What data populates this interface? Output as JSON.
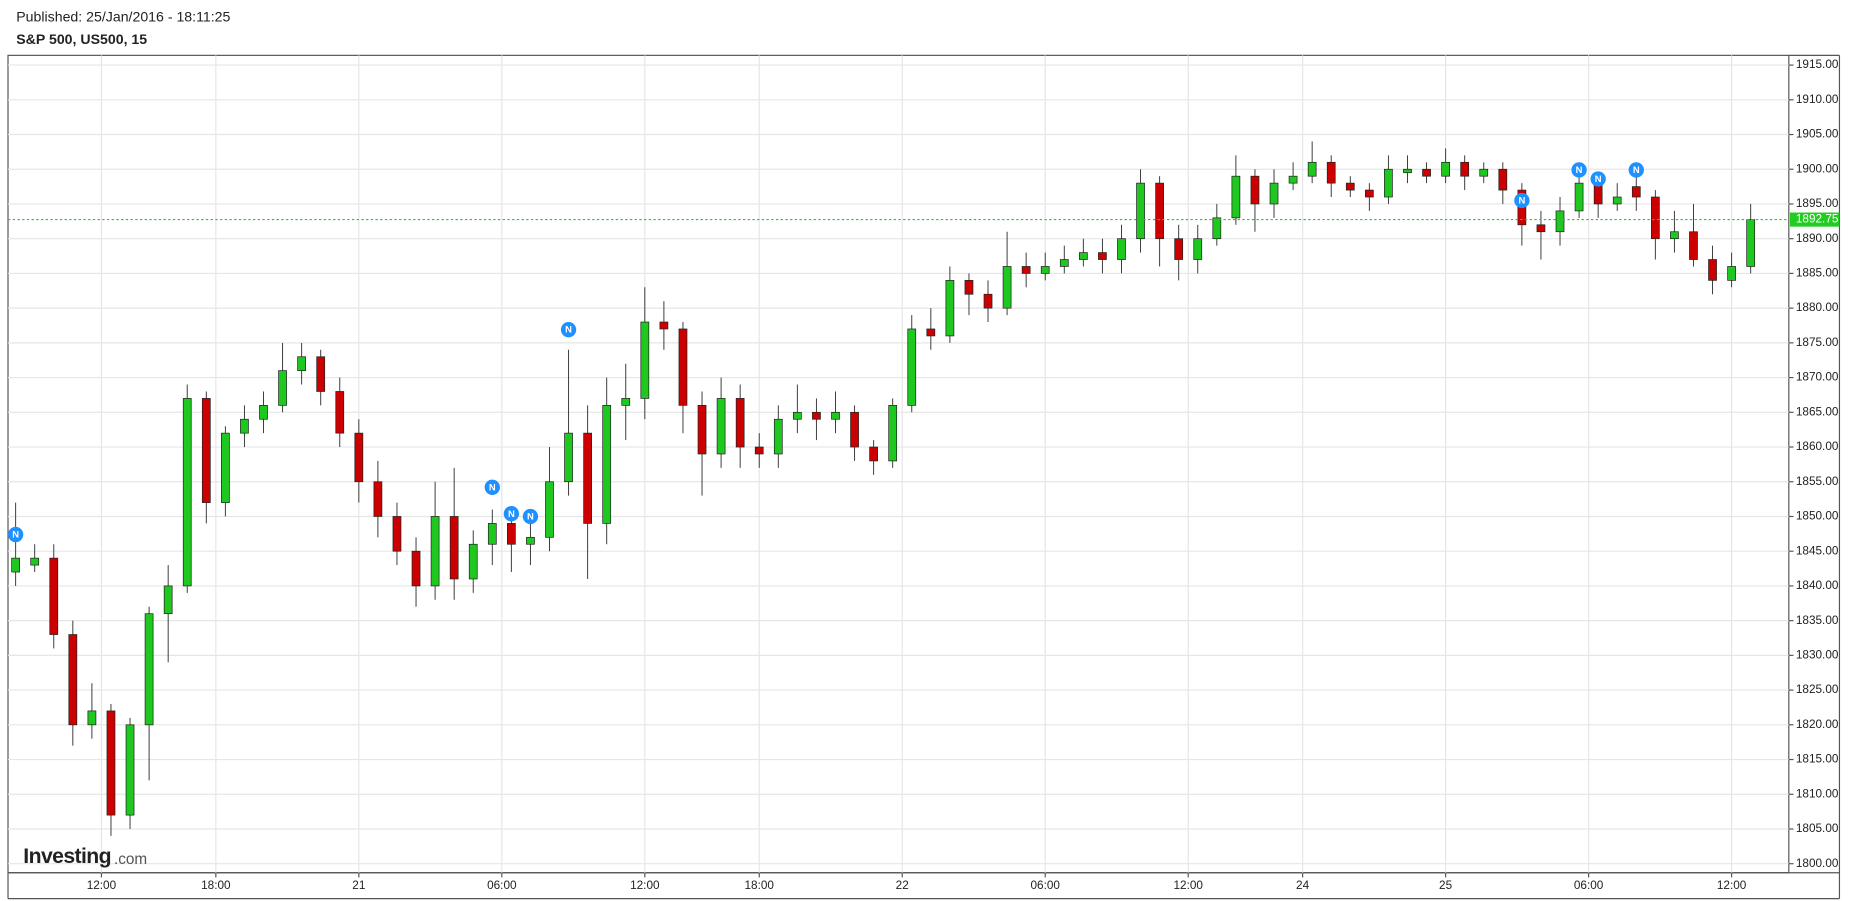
{
  "chart_data": {
    "type": "candlestick",
    "header": {
      "published": "Published: 25/Jan/2016 - 18:11:25",
      "title": "S&P 500, US500, 15"
    },
    "logo": {
      "brand": "Investing",
      "suffix": ".com"
    },
    "xlim": [
      -0.4,
      93
    ],
    "xticks": [
      {
        "value": 4.5,
        "label": "12:00"
      },
      {
        "value": 10.5,
        "label": "18:00"
      },
      {
        "value": 18,
        "label": "21"
      },
      {
        "value": 25.5,
        "label": "06:00"
      },
      {
        "value": 33,
        "label": "12:00"
      },
      {
        "value": 39,
        "label": "18:00"
      },
      {
        "value": 46.5,
        "label": "22"
      },
      {
        "value": 54,
        "label": "06:00"
      },
      {
        "value": 61.5,
        "label": "12:00"
      },
      {
        "value": 67.5,
        "label": "24"
      },
      {
        "value": 75,
        "label": "25"
      },
      {
        "value": 82.5,
        "label": "06:00"
      },
      {
        "value": 90,
        "label": "12:00"
      }
    ],
    "ylim": [
      1798.7,
      1916.4
    ],
    "yticks": [
      {
        "value": 1800,
        "label": "1800.00"
      },
      {
        "value": 1805,
        "label": "1805.00"
      },
      {
        "value": 1810,
        "label": "1810.00"
      },
      {
        "value": 1815,
        "label": "1815.00"
      },
      {
        "value": 1820,
        "label": "1820.00"
      },
      {
        "value": 1825,
        "label": "1825.00"
      },
      {
        "value": 1830,
        "label": "1830.00"
      },
      {
        "value": 1835,
        "label": "1835.00"
      },
      {
        "value": 1840,
        "label": "1840.00"
      },
      {
        "value": 1845,
        "label": "1845.00"
      },
      {
        "value": 1850,
        "label": "1850.00"
      },
      {
        "value": 1855,
        "label": "1855.00"
      },
      {
        "value": 1860,
        "label": "1860.00"
      },
      {
        "value": 1865,
        "label": "1865.00"
      },
      {
        "value": 1870,
        "label": "1870.00"
      },
      {
        "value": 1875,
        "label": "1875.00"
      },
      {
        "value": 1880,
        "label": "1880.00"
      },
      {
        "value": 1885,
        "label": "1885.00"
      },
      {
        "value": 1890,
        "label": "1890.00"
      },
      {
        "value": 1895,
        "label": "1895.00"
      },
      {
        "value": 1900,
        "label": "1900.00"
      },
      {
        "value": 1905,
        "label": "1905.00"
      },
      {
        "value": 1910,
        "label": "1910.00"
      },
      {
        "value": 1915,
        "label": "1915.00"
      }
    ],
    "grid": true,
    "up_color": "#1ec81e",
    "down_color": "#cc0000",
    "last_price_color": "#22cc22",
    "last_price": 1892.75,
    "open": [
      1842,
      1843,
      1844,
      1833,
      1820,
      1822,
      1807,
      1820,
      1836,
      1840,
      1867,
      1852,
      1862,
      1864,
      1866,
      1871,
      1873,
      1868,
      1862,
      1855,
      1850,
      1845,
      1840,
      1850,
      1841,
      1846,
      1849,
      1846,
      1847,
      1855,
      1862,
      1849,
      1866,
      1867,
      1878,
      1877,
      1866,
      1859,
      1867,
      1860,
      1859,
      1864,
      1865,
      1864,
      1865,
      1860,
      1858,
      1866,
      1877,
      1876,
      1884,
      1882,
      1880,
      1886,
      1885,
      1886,
      1887,
      1888,
      1887,
      1890,
      1898,
      1890,
      1887,
      1890,
      1893,
      1899,
      1895,
      1898,
      1899,
      1901,
      1898,
      1897,
      1896,
      1899.5,
      1900,
      1899,
      1901,
      1899,
      1900,
      1897,
      1892,
      1891,
      1894,
      1898,
      1895,
      1897.5,
      1896,
      1890,
      1891,
      1887,
      1884,
      1886
    ],
    "high": [
      1852,
      1846,
      1846,
      1835,
      1826,
      1823,
      1821,
      1837,
      1843,
      1869,
      1868,
      1863,
      1866,
      1868,
      1875,
      1875,
      1874,
      1870,
      1864,
      1858,
      1852,
      1847,
      1855,
      1857,
      1848,
      1851,
      1851,
      1849,
      1860,
      1874,
      1866,
      1870,
      1872,
      1883,
      1881,
      1878,
      1868,
      1870,
      1869,
      1862,
      1866,
      1869,
      1867,
      1868,
      1866,
      1861,
      1867,
      1879,
      1880,
      1886,
      1885,
      1884,
      1891,
      1888,
      1888,
      1889,
      1890,
      1890,
      1892,
      1900,
      1899,
      1892,
      1892,
      1895,
      1902,
      1900,
      1900,
      1901,
      1904,
      1902,
      1899,
      1898,
      1902,
      1902,
      1901,
      1903,
      1902,
      1901,
      1901,
      1898,
      1894,
      1896,
      1900,
      1899,
      1898,
      1899,
      1897,
      1894,
      1895,
      1889,
      1888,
      1895
    ],
    "low": [
      1840,
      1842,
      1831,
      1817,
      1818,
      1804,
      1805,
      1812,
      1829,
      1839,
      1849,
      1850,
      1860,
      1862,
      1865,
      1869,
      1866,
      1860,
      1852,
      1847,
      1843,
      1837,
      1838,
      1838,
      1839,
      1843,
      1842,
      1843,
      1845,
      1853,
      1841,
      1846,
      1861,
      1864,
      1874,
      1862,
      1853,
      1857,
      1857,
      1857,
      1857,
      1862,
      1861,
      1862,
      1858,
      1856,
      1857,
      1865,
      1874,
      1875,
      1879,
      1878,
      1879,
      1883,
      1884,
      1885,
      1886,
      1885,
      1885,
      1888,
      1886,
      1884,
      1885,
      1889,
      1892,
      1891,
      1893,
      1897,
      1898,
      1896,
      1896,
      1894,
      1895,
      1898,
      1898,
      1898,
      1897,
      1898,
      1895,
      1889,
      1887,
      1889,
      1893,
      1893,
      1894,
      1894,
      1887,
      1888,
      1886,
      1882,
      1883,
      1885
    ],
    "close": [
      1844,
      1844,
      1833,
      1820,
      1822,
      1807,
      1820,
      1836,
      1840,
      1867,
      1852,
      1862,
      1864,
      1866,
      1871,
      1873,
      1868,
      1862,
      1855,
      1850,
      1845,
      1840,
      1850,
      1841,
      1846,
      1849,
      1846,
      1847,
      1855,
      1862,
      1849,
      1866,
      1867,
      1878,
      1877,
      1866,
      1859,
      1867,
      1860,
      1859,
      1864,
      1865,
      1864,
      1865,
      1860,
      1858,
      1866,
      1877,
      1876,
      1884,
      1882,
      1880,
      1886,
      1885,
      1886,
      1887,
      1888,
      1887,
      1890,
      1898,
      1890,
      1887,
      1890,
      1893,
      1899,
      1895,
      1898,
      1899,
      1901,
      1898,
      1897,
      1896,
      1900,
      1900,
      1899,
      1901,
      1899,
      1900,
      1897,
      1892,
      1891,
      1894,
      1898,
      1895,
      1896,
      1896,
      1890,
      1891,
      1887,
      1884,
      1886,
      1892.75
    ],
    "news": [
      {
        "x": 0,
        "price": 1847.4,
        "label": "N"
      },
      {
        "x": 25,
        "price": 1854.2,
        "label": "N"
      },
      {
        "x": 26,
        "price": 1850.4,
        "label": "N"
      },
      {
        "x": 27,
        "price": 1850,
        "label": "N"
      },
      {
        "x": 29,
        "price": 1876.9,
        "label": "N"
      },
      {
        "x": 79,
        "price": 1895.5,
        "label": "N"
      },
      {
        "x": 82,
        "price": 1899.9,
        "label": "N"
      },
      {
        "x": 83,
        "price": 1898.6,
        "label": "N"
      },
      {
        "x": 85,
        "price": 1899.9,
        "label": "N"
      }
    ]
  }
}
